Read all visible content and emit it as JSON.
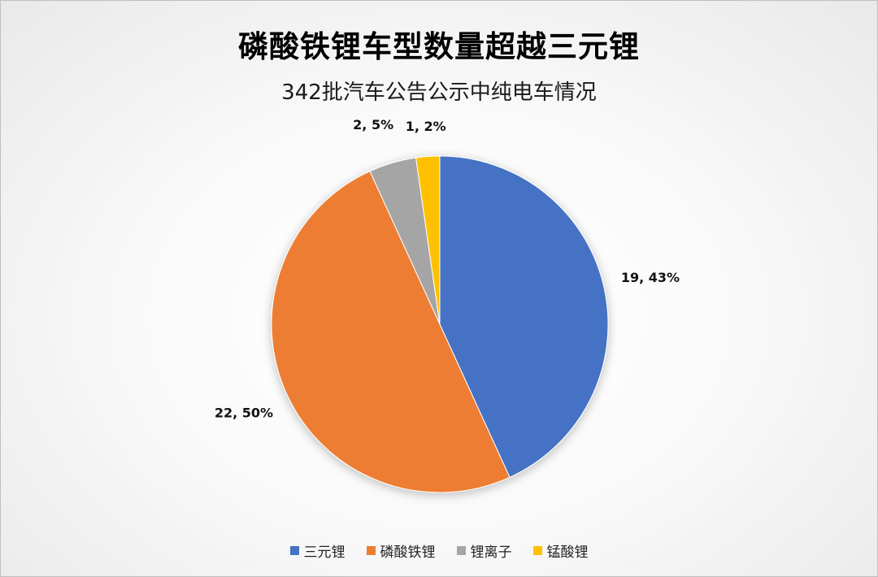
{
  "chart_data": {
    "type": "pie",
    "title": "磷酸铁锂车型数量超越三元锂",
    "subtitle": "342批汽车公告公示中纯电车情况",
    "categories": [
      "三元锂",
      "磷酸铁锂",
      "锂离子",
      "锰酸锂"
    ],
    "values": [
      19,
      22,
      2,
      1
    ],
    "percent_labels": [
      "43%",
      "50%",
      "5%",
      "2%"
    ],
    "data_labels": [
      "19, 43%",
      "22, 50%",
      "2, 5%",
      "1, 2%"
    ],
    "colors": [
      "#4472C4",
      "#ED7D31",
      "#A5A5A5",
      "#FFC000"
    ],
    "legend_position": "bottom"
  }
}
